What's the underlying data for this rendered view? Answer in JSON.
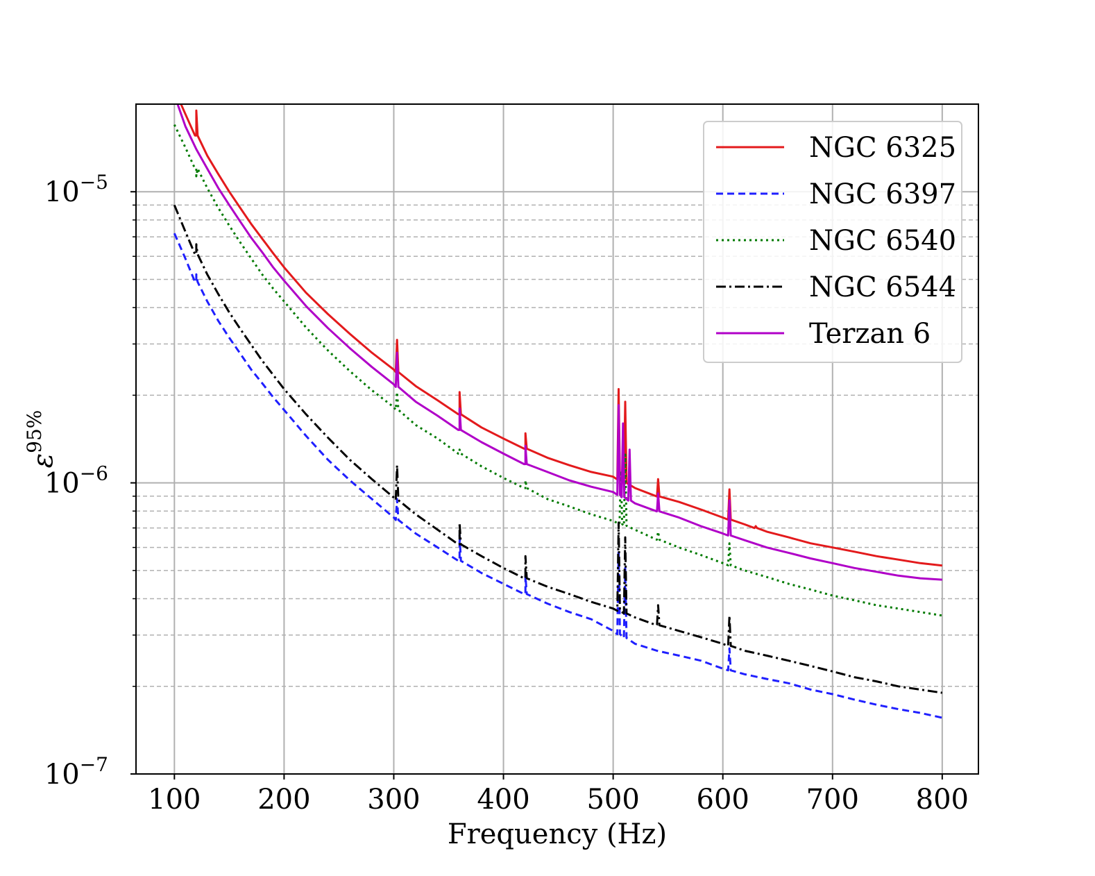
{
  "chart_data": {
    "type": "line",
    "xlabel": "Frequency (Hz)",
    "ylabel": "ε",
    "ylabel_sup": "95%",
    "xlim": [
      65,
      833
    ],
    "ylim": [
      1e-07,
      2e-05
    ],
    "yscale": "log",
    "xticks": [
      100,
      200,
      300,
      400,
      500,
      600,
      700,
      800
    ],
    "xtick_labels": [
      "100",
      "200",
      "300",
      "400",
      "500",
      "600",
      "700",
      "800"
    ],
    "ytick_major": [
      {
        "value": 1e-07,
        "base": "10",
        "exp": "−7"
      },
      {
        "value": 1e-06,
        "base": "10",
        "exp": "−6"
      },
      {
        "value": 1e-05,
        "base": "10",
        "exp": "−5"
      }
    ],
    "ytick_minor": [
      2e-07,
      3e-07,
      4e-07,
      5e-07,
      6e-07,
      7e-07,
      8e-07,
      9e-07,
      2e-06,
      3e-06,
      4e-06,
      5e-06,
      6e-06,
      7e-06,
      8e-06,
      9e-06
    ],
    "grid": true,
    "legend_position": "top-right",
    "x": [
      100,
      110,
      120,
      130,
      140,
      150,
      160,
      170,
      180,
      190,
      200,
      220,
      240,
      260,
      280,
      300,
      320,
      340,
      360,
      380,
      400,
      420,
      440,
      460,
      480,
      500,
      520,
      540,
      560,
      580,
      600,
      620,
      640,
      660,
      680,
      700,
      720,
      740,
      760,
      780,
      800
    ],
    "series": [
      {
        "name": "NGC 6325",
        "color": "#e31a1c",
        "dash": "solid",
        "values": [
          2.25e-05,
          1.85e-05,
          1.56e-05,
          1.33e-05,
          1.15e-05,
          1e-05,
          8.8e-06,
          7.75e-06,
          6.9e-06,
          6.15e-06,
          5.5e-06,
          4.5e-06,
          3.8e-06,
          3.25e-06,
          2.8e-06,
          2.45e-06,
          2.15e-06,
          1.92e-06,
          1.72e-06,
          1.55e-06,
          1.42e-06,
          1.31e-06,
          1.22e-06,
          1.15e-06,
          1.09e-06,
          1.05e-06,
          9.6e-07,
          9e-07,
          8.6e-07,
          8.1e-07,
          7.6e-07,
          7.2e-07,
          6.8e-07,
          6.5e-07,
          6.2e-07,
          6e-07,
          5.8e-07,
          5.6e-07,
          5.45e-07,
          5.3e-07,
          5.2e-07
        ],
        "spikes": [
          [
            120,
            1.9e-05
          ],
          [
            303,
            3.1e-06
          ],
          [
            360,
            2.05e-06
          ],
          [
            420,
            1.48e-06
          ],
          [
            505,
            2.1e-06
          ],
          [
            511,
            1.9e-06
          ],
          [
            541,
            1.03e-06
          ],
          [
            606,
            9.5e-07
          ],
          [
            630,
            7.1e-07
          ]
        ]
      },
      {
        "name": "NGC 6397",
        "color": "#1f1fff",
        "dash": "10,6",
        "values": [
          7.2e-06,
          5.9e-06,
          4.9e-06,
          4.2e-06,
          3.6e-06,
          3.15e-06,
          2.78e-06,
          2.45e-06,
          2.2e-06,
          1.97e-06,
          1.78e-06,
          1.45e-06,
          1.2e-06,
          1.02e-06,
          8.8e-07,
          7.6e-07,
          6.7e-07,
          6e-07,
          5.4e-07,
          4.9e-07,
          4.5e-07,
          4.15e-07,
          3.85e-07,
          3.6e-07,
          3.4e-07,
          3.1e-07,
          2.8e-07,
          2.65e-07,
          2.55e-07,
          2.45e-07,
          2.3e-07,
          2.2e-07,
          2.12e-07,
          2.05e-07,
          1.95e-07,
          1.88e-07,
          1.8e-07,
          1.73e-07,
          1.67e-07,
          1.62e-07,
          1.56e-07
        ],
        "spikes": [
          [
            120,
            5.2e-06
          ],
          [
            303,
            8.8e-07
          ],
          [
            360,
            6.6e-07
          ],
          [
            420,
            4.8e-07
          ],
          [
            505,
            5.9e-07
          ],
          [
            511,
            5.1e-07
          ],
          [
            606,
            2.7e-07
          ]
        ]
      },
      {
        "name": "NGC 6540",
        "color": "#007a00",
        "dash": "3,5",
        "values": [
          1.7e-05,
          1.42e-05,
          1.2e-05,
          1.03e-05,
          8.8e-06,
          7.65e-06,
          6.7e-06,
          5.9e-06,
          5.2e-06,
          4.65e-06,
          4.2e-06,
          3.42e-06,
          2.85e-06,
          2.42e-06,
          2.08e-06,
          1.82e-06,
          1.58e-06,
          1.42e-06,
          1.26e-06,
          1.14e-06,
          1.04e-06,
          9.6e-07,
          8.8e-07,
          8.3e-07,
          7.8e-07,
          7.4e-07,
          6.9e-07,
          6.4e-07,
          6e-07,
          5.65e-07,
          5.3e-07,
          5e-07,
          4.75e-07,
          4.5e-07,
          4.3e-07,
          4.1e-07,
          3.95e-07,
          3.8e-07,
          3.7e-07,
          3.6e-07,
          3.5e-07
        ],
        "spikes": [
          [
            120,
            1.13e-05
          ],
          [
            303,
            2.05e-06
          ],
          [
            360,
            1.3e-06
          ],
          [
            420,
            1.02e-06
          ],
          [
            507,
            1.1e-06
          ],
          [
            511,
            1.25e-06
          ],
          [
            541,
            6.8e-07
          ],
          [
            606,
            6.2e-07
          ]
        ]
      },
      {
        "name": "NGC 6544",
        "color": "#000000",
        "dash": "14,5,3,5",
        "values": [
          9e-06,
          7.3e-06,
          6.1e-06,
          5.2e-06,
          4.45e-06,
          3.85e-06,
          3.38e-06,
          2.98e-06,
          2.63e-06,
          2.35e-06,
          2.1e-06,
          1.72e-06,
          1.43e-06,
          1.2e-06,
          1.03e-06,
          8.9e-07,
          7.8e-07,
          6.9e-07,
          6.15e-07,
          5.6e-07,
          5.1e-07,
          4.7e-07,
          4.4e-07,
          4.15e-07,
          3.9e-07,
          3.7e-07,
          3.45e-07,
          3.25e-07,
          3.1e-07,
          2.95e-07,
          2.8e-07,
          2.65e-07,
          2.55e-07,
          2.45e-07,
          2.35e-07,
          2.25e-07,
          2.15e-07,
          2.08e-07,
          2e-07,
          1.95e-07,
          1.9e-07
        ],
        "spikes": [
          [
            120,
            6.6e-06
          ],
          [
            303,
            1.15e-06
          ],
          [
            360,
            7.3e-07
          ],
          [
            420,
            5.6e-07
          ],
          [
            505,
            7.3e-07
          ],
          [
            511,
            6.5e-07
          ],
          [
            541,
            3.8e-07
          ],
          [
            606,
            3.5e-07
          ]
        ]
      },
      {
        "name": "Terzan 6",
        "color": "#b000c8",
        "dash": "solid",
        "values": [
          2.15e-05,
          1.68e-05,
          1.4e-05,
          1.2e-05,
          1.03e-05,
          9e-06,
          7.9e-06,
          6.95e-06,
          6.2e-06,
          5.5e-06,
          4.95e-06,
          4.05e-06,
          3.4e-06,
          2.9e-06,
          2.5e-06,
          2.18e-06,
          1.9e-06,
          1.7e-06,
          1.52e-06,
          1.38e-06,
          1.26e-06,
          1.16e-06,
          1.09e-06,
          1.02e-06,
          9.7e-07,
          9.3e-07,
          8.5e-07,
          8e-07,
          7.6e-07,
          7.1e-07,
          6.7e-07,
          6.35e-07,
          6e-07,
          5.75e-07,
          5.5e-07,
          5.3e-07,
          5.1e-07,
          4.95e-07,
          4.8e-07,
          4.7e-07,
          4.65e-07
        ],
        "spikes": [
          [
            303,
            2.8e-06
          ],
          [
            360,
            1.8e-06
          ],
          [
            420,
            1.34e-06
          ],
          [
            505,
            1.85e-06
          ],
          [
            509,
            1.6e-06
          ],
          [
            515,
            1.3e-06
          ],
          [
            541,
            9.2e-07
          ],
          [
            606,
            8.7e-07
          ]
        ]
      }
    ]
  }
}
